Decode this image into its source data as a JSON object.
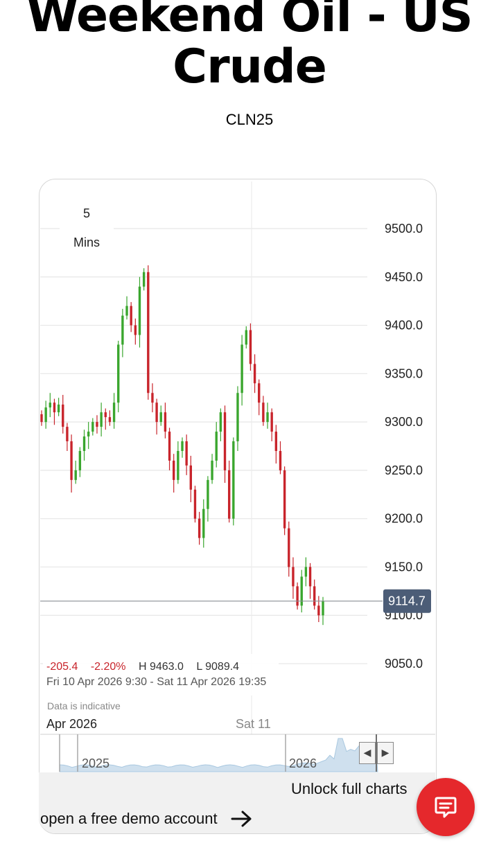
{
  "page": {
    "title": "Weekend Oil - US Crude",
    "symbol": "CLN25"
  },
  "chart_toolbar": {
    "timeframe_value": "5",
    "timeframe_unit": "Mins"
  },
  "stats": {
    "change": "-205.4",
    "change_pct": "-2.20%",
    "high": "H 9463.0",
    "low": "L 9089.4",
    "range": "Fri 10 Apr 2026 9:30 - Sat 11 Apr 2026 19:35",
    "disclaimer": "Data is indicative"
  },
  "cta": {
    "unlock": "Unlock full charts",
    "demo": "open a free demo account"
  },
  "colors": {
    "up": "#3aa62e",
    "down": "#c8242b",
    "price_label_bg": "#4c5d77",
    "accent": "#e5282c",
    "navigator_fill": "#cfe0ee",
    "navigator_line": "#a9c8e0"
  },
  "chart_data": {
    "type": "candlestick",
    "interval": "5 Mins",
    "ylim": [
      9050,
      9500
    ],
    "yticks": [
      "9500.0",
      "9450.0",
      "9400.0",
      "9350.0",
      "9300.0",
      "9250.0",
      "9200.0",
      "9150.0",
      "9100.0",
      "9050.0"
    ],
    "xticks": [
      "Apr 2026",
      "Sat 11"
    ],
    "last_price": 9114.7,
    "last_price_label": "9114.7",
    "series": [
      {
        "name": "US Crude",
        "close": [
          9300,
          9315,
          9320,
          9310,
          9318,
          9295,
          9280,
          9240,
          9250,
          9270,
          9285,
          9290,
          9300,
          9295,
          9310,
          9305,
          9300,
          9320,
          9380,
          9410,
          9420,
          9400,
          9390,
          9440,
          9455,
          9330,
          9320,
          9300,
          9310,
          9290,
          9260,
          9240,
          9270,
          9280,
          9255,
          9230,
          9200,
          9180,
          9210,
          9240,
          9260,
          9290,
          9310,
          9250,
          9200,
          9280,
          9330,
          9380,
          9395,
          9360,
          9340,
          9320,
          9300,
          9310,
          9290,
          9270,
          9250,
          9190,
          9150,
          9130,
          9110,
          9140,
          9150,
          9130,
          9110,
          9100,
          9115
        ]
      }
    ],
    "navigator": {
      "labels": [
        "2025",
        "2026"
      ]
    }
  }
}
